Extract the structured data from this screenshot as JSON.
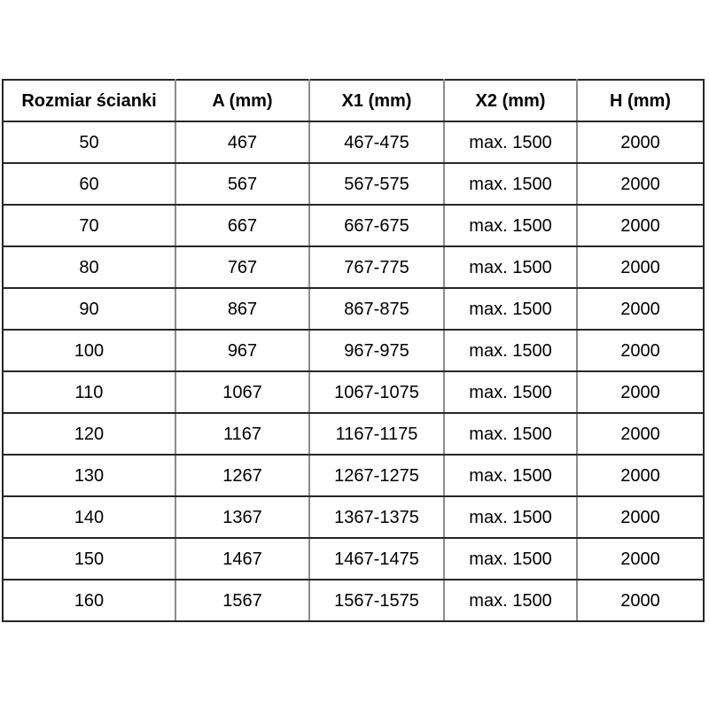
{
  "table": {
    "headers": [
      "Rozmiar ścianki",
      "A (mm)",
      "X1 (mm)",
      "X2 (mm)",
      "H (mm)"
    ],
    "rows": [
      [
        "50",
        "467",
        "467-475",
        "max. 1500",
        "2000"
      ],
      [
        "60",
        "567",
        "567-575",
        "max. 1500",
        "2000"
      ],
      [
        "70",
        "667",
        "667-675",
        "max. 1500",
        "2000"
      ],
      [
        "80",
        "767",
        "767-775",
        "max. 1500",
        "2000"
      ],
      [
        "90",
        "867",
        "867-875",
        "max. 1500",
        "2000"
      ],
      [
        "100",
        "967",
        "967-975",
        "max. 1500",
        "2000"
      ],
      [
        "110",
        "1067",
        "1067-1075",
        "max. 1500",
        "2000"
      ],
      [
        "120",
        "1167",
        "1167-1175",
        "max. 1500",
        "2000"
      ],
      [
        "130",
        "1267",
        "1267-1275",
        "max. 1500",
        "2000"
      ],
      [
        "140",
        "1367",
        "1367-1375",
        "max. 1500",
        "2000"
      ],
      [
        "150",
        "1467",
        "1467-1475",
        "max. 1500",
        "2000"
      ],
      [
        "160",
        "1567",
        "1567-1575",
        "max. 1500",
        "2000"
      ]
    ]
  },
  "colors": {
    "background": "#ffffff",
    "text": "#000000",
    "border_horizontal": "#262626",
    "border_vertical": "#8c8c8c"
  }
}
